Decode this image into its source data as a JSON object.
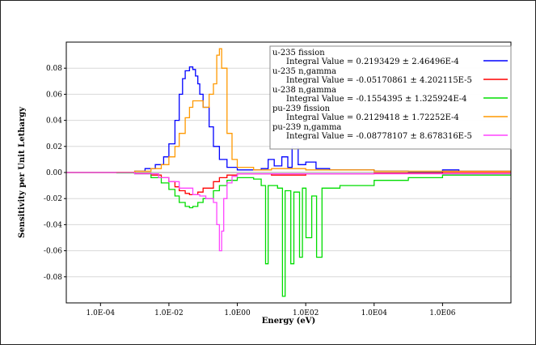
{
  "chart_data": {
    "type": "line",
    "xlabel": "Energy (eV)",
    "ylabel": "Sensitivity per Unit Lethargy",
    "x_scale": "log",
    "xlim": [
      1e-05,
      100000000
    ],
    "ylim": [
      -0.1,
      0.1
    ],
    "x_ticks": [
      {
        "value": 0.0001,
        "label": "1.0E-04"
      },
      {
        "value": 0.01,
        "label": "1.0E-02"
      },
      {
        "value": 1,
        "label": "1.0E00"
      },
      {
        "value": 100,
        "label": "1.0E02"
      },
      {
        "value": 10000,
        "label": "1.0E04"
      },
      {
        "value": 1000000,
        "label": "1.0E06"
      }
    ],
    "y_ticks": [
      {
        "value": 0.08,
        "label": "0.08"
      },
      {
        "value": 0.06,
        "label": "0.06"
      },
      {
        "value": 0.04,
        "label": "0.04"
      },
      {
        "value": 0.02,
        "label": "0.02"
      },
      {
        "value": 0.0,
        "label": "0.00"
      },
      {
        "value": -0.02,
        "label": "-0.02"
      },
      {
        "value": -0.04,
        "label": "-0.04"
      },
      {
        "value": -0.06,
        "label": "-0.06"
      },
      {
        "value": -0.08,
        "label": "-0.08"
      }
    ],
    "grid": "horizontal",
    "legend_position": "top-right",
    "series": [
      {
        "name": "u-235 fission",
        "integral": "Integral Value = 0.2193429 ± 2.46496E-4",
        "color": "#0000ff",
        "points": [
          [
            1e-05,
            0.0
          ],
          [
            0.0003,
            0.0002
          ],
          [
            0.001,
            0.001
          ],
          [
            0.002,
            0.003
          ],
          [
            0.004,
            0.006
          ],
          [
            0.007,
            0.012
          ],
          [
            0.01,
            0.022
          ],
          [
            0.015,
            0.04
          ],
          [
            0.02,
            0.06
          ],
          [
            0.025,
            0.072
          ],
          [
            0.03,
            0.078
          ],
          [
            0.04,
            0.081
          ],
          [
            0.05,
            0.079
          ],
          [
            0.06,
            0.074
          ],
          [
            0.07,
            0.068
          ],
          [
            0.08,
            0.06
          ],
          [
            0.1,
            0.05
          ],
          [
            0.15,
            0.035
          ],
          [
            0.2,
            0.02
          ],
          [
            0.3,
            0.01
          ],
          [
            0.5,
            0.004
          ],
          [
            1,
            0.002
          ],
          [
            2,
            0.002
          ],
          [
            5,
            0.003
          ],
          [
            8,
            0.01
          ],
          [
            12,
            0.005
          ],
          [
            20,
            0.012
          ],
          [
            30,
            0.004
          ],
          [
            40,
            0.02
          ],
          [
            60,
            0.006
          ],
          [
            100,
            0.008
          ],
          [
            200,
            0.003
          ],
          [
            500,
            0.002
          ],
          [
            1000,
            0.002
          ],
          [
            10000,
            0.001
          ],
          [
            100000,
            0.0008
          ],
          [
            1000000,
            0.002
          ],
          [
            3000000,
            0.001
          ],
          [
            100000000,
            0.0
          ]
        ]
      },
      {
        "name": "u-235 n,gamma",
        "integral": "Integral Value = -0.05170861 ± 4.202115E-5",
        "color": "#ff0000",
        "points": [
          [
            1e-05,
            0.0
          ],
          [
            0.0003,
            -0.0002
          ],
          [
            0.001,
            -0.0008
          ],
          [
            0.003,
            -0.002
          ],
          [
            0.006,
            -0.004
          ],
          [
            0.01,
            -0.007
          ],
          [
            0.015,
            -0.011
          ],
          [
            0.02,
            -0.014
          ],
          [
            0.03,
            -0.016
          ],
          [
            0.04,
            -0.017
          ],
          [
            0.05,
            -0.017
          ],
          [
            0.07,
            -0.015
          ],
          [
            0.1,
            -0.012
          ],
          [
            0.2,
            -0.007
          ],
          [
            0.3,
            -0.004
          ],
          [
            0.5,
            -0.002
          ],
          [
            1,
            -0.001
          ],
          [
            5,
            -0.001
          ],
          [
            10,
            -0.002
          ],
          [
            100,
            -0.001
          ],
          [
            10000,
            -0.0005
          ],
          [
            1000000,
            0.0
          ],
          [
            100000000,
            0.0
          ]
        ]
      },
      {
        "name": "u-238 n,gamma",
        "integral": "Integral Value = -0.1554395 ± 1.325924E-4",
        "color": "#00dd00",
        "points": [
          [
            1e-05,
            0.0
          ],
          [
            0.0003,
            -0.0003
          ],
          [
            0.001,
            -0.001
          ],
          [
            0.003,
            -0.004
          ],
          [
            0.006,
            -0.008
          ],
          [
            0.01,
            -0.013
          ],
          [
            0.015,
            -0.018
          ],
          [
            0.02,
            -0.023
          ],
          [
            0.03,
            -0.026
          ],
          [
            0.04,
            -0.027
          ],
          [
            0.05,
            -0.026
          ],
          [
            0.07,
            -0.023
          ],
          [
            0.1,
            -0.02
          ],
          [
            0.2,
            -0.014
          ],
          [
            0.3,
            -0.01
          ],
          [
            0.5,
            -0.006
          ],
          [
            1,
            -0.004
          ],
          [
            3,
            -0.005
          ],
          [
            5,
            -0.01
          ],
          [
            6.7,
            -0.07
          ],
          [
            8,
            -0.01
          ],
          [
            15,
            -0.012
          ],
          [
            20.9,
            -0.095
          ],
          [
            25,
            -0.014
          ],
          [
            36.7,
            -0.07
          ],
          [
            45,
            -0.015
          ],
          [
            66,
            -0.065
          ],
          [
            80,
            -0.012
          ],
          [
            102,
            -0.05
          ],
          [
            150,
            -0.018
          ],
          [
            208,
            -0.065
          ],
          [
            300,
            -0.012
          ],
          [
            1000,
            -0.01
          ],
          [
            10000,
            -0.006
          ],
          [
            100000,
            -0.004
          ],
          [
            1000000,
            -0.002
          ],
          [
            100000000,
            0.0
          ]
        ]
      },
      {
        "name": "pu-239 fission",
        "integral": "Integral Value = 0.2129418 ± 1.72252E-4",
        "color": "#ff9900",
        "points": [
          [
            1e-05,
            0.0
          ],
          [
            0.0003,
            0.0002
          ],
          [
            0.001,
            0.001
          ],
          [
            0.003,
            0.003
          ],
          [
            0.006,
            0.006
          ],
          [
            0.01,
            0.012
          ],
          [
            0.015,
            0.02
          ],
          [
            0.02,
            0.03
          ],
          [
            0.03,
            0.042
          ],
          [
            0.04,
            0.05
          ],
          [
            0.05,
            0.055
          ],
          [
            0.07,
            0.055
          ],
          [
            0.1,
            0.05
          ],
          [
            0.15,
            0.06
          ],
          [
            0.2,
            0.068
          ],
          [
            0.25,
            0.09
          ],
          [
            0.3,
            0.095
          ],
          [
            0.35,
            0.08
          ],
          [
            0.5,
            0.03
          ],
          [
            0.7,
            0.01
          ],
          [
            1,
            0.004
          ],
          [
            3,
            0.002
          ],
          [
            10,
            0.003
          ],
          [
            100,
            0.002
          ],
          [
            10000,
            0.001
          ],
          [
            1000000,
            0.001
          ],
          [
            100000000,
            0.0
          ]
        ]
      },
      {
        "name": "pu-239 n,gamma",
        "integral": "Integral Value = -0.08778107 ± 8.678316E-5",
        "color": "#ff44ff",
        "points": [
          [
            1e-05,
            0.0
          ],
          [
            0.001,
            -0.001
          ],
          [
            0.005,
            -0.004
          ],
          [
            0.01,
            -0.007
          ],
          [
            0.02,
            -0.012
          ],
          [
            0.05,
            -0.017
          ],
          [
            0.08,
            -0.018
          ],
          [
            0.12,
            -0.02
          ],
          [
            0.2,
            -0.023
          ],
          [
            0.25,
            -0.04
          ],
          [
            0.3,
            -0.06
          ],
          [
            0.35,
            -0.045
          ],
          [
            0.4,
            -0.02
          ],
          [
            0.5,
            -0.008
          ],
          [
            0.7,
            -0.003
          ],
          [
            1,
            -0.001
          ],
          [
            10,
            -0.001
          ],
          [
            100000000,
            0.0
          ]
        ]
      }
    ]
  }
}
